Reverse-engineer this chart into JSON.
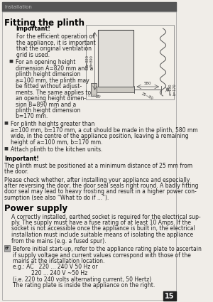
{
  "page_num": "15",
  "header_text": "Installation",
  "section_title": "Fitting the plinth",
  "bg_color": "#f0ede8",
  "header_bg": "#555555",
  "header_text_color": "#bbbbbb",
  "title_color": "#000000",
  "body_color": "#222222",
  "bold_label": "Important!",
  "para1_line1": "For the efficient operation of",
  "para1_line2": "the appliance, it is important",
  "para1_line3": "that the original ventilation",
  "para1_line4": "grid is used.",
  "bullet1_lines": [
    "For an opening height",
    "dimension A=820 mm and a",
    "plinth height dimension",
    "a=100 mm, the plinth may",
    "be fitted without adjust-",
    "ments. The same applies to",
    "an opening height dimen-",
    "sion B=890 mm and a",
    "plinth height dimension",
    "b=170 mm."
  ],
  "bullet2_lines": [
    "For plinth heights greater than",
    "a=100 mm, b=170 mm, a cut should be made in the plinth, 580 mm",
    "wide, in the centre of the appliance position, leaving a remaining",
    "height of a=100 mm, b=170 mm."
  ],
  "bullet3": "Attach plinth to the kitchen units.",
  "bold_label2": "Important!",
  "para2_lines": [
    "The plinth must be positioned at a minimum distance of 25 mm from",
    "the door."
  ],
  "para3_lines": [
    "Please check whether, after installing your appliance and especially",
    "after reversing the door, the door seal seals right round. A badly fitting",
    "door seal may lead to heavy frosting and result in a higher power con-",
    "sumption (see also “What to do if ...”)."
  ],
  "section2_title": "Power supply",
  "para4_lines": [
    "A correctly installed, earthed socket is required for the electrical sup-",
    "ply. The supply must have a fuse rating of at least 10 Amps. If the",
    "socket is not accessible once the appliance is built in, the electrical",
    "installation must include suitable means of isolating the appliance",
    "from the mains (e.g. a fused spur)."
  ],
  "note_lines": [
    "Before initial start-up, refer to the appliance rating plate to ascertain",
    "if supply voltage and current values correspond with those of the",
    "mains at the installation location.",
    "e.g.: AC   220 ... 240 V 50 Hz or",
    "           220 ... 240 V ~50 Hz",
    "(i.e. 220 to 240 volts alternating current, 50 Hertz)",
    "The rating plate is inside the appliance on the right."
  ]
}
